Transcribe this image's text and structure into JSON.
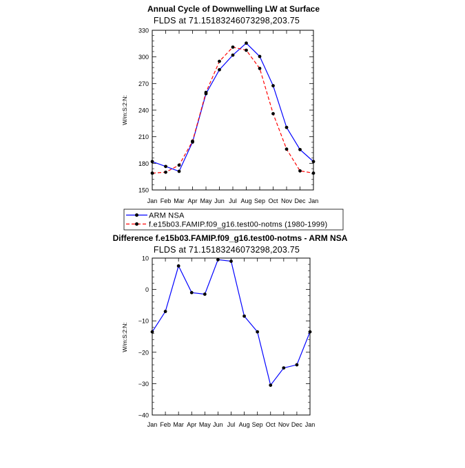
{
  "chart_data": [
    {
      "type": "line",
      "title": "Annual Cycle of Downwelling LW at Surface",
      "subtitle": "FLDS at 71.15183246073298,203.75",
      "ylabel": "W/m:S:2:N:",
      "ylim": [
        150,
        330
      ],
      "yticks": [
        150,
        180,
        210,
        240,
        270,
        300,
        330
      ],
      "categories": [
        "Jan",
        "Feb",
        "Mar",
        "Apr",
        "May",
        "Jun",
        "Jul",
        "Aug",
        "Sep",
        "Oct",
        "Nov",
        "Dec",
        "Jan"
      ],
      "series": [
        {
          "name": "ARM NSA",
          "color": "#0000ff",
          "dash": "solid",
          "values": [
            182,
            176.5,
            171,
            204,
            258.5,
            285.5,
            302,
            315.5,
            300.5,
            267.5,
            220.5,
            195.5,
            182
          ]
        },
        {
          "name": "f.e15b03.FAMIP.f09_g16.test00-notms (1980-1999)",
          "color": "#ff0000",
          "dash": "dashed",
          "values": [
            169,
            170,
            178,
            205,
            260,
            295,
            311,
            307.5,
            287,
            236,
            196,
            171.5,
            169
          ]
        }
      ],
      "legend": "below"
    },
    {
      "type": "line",
      "title": "Difference f.e15b03.FAMIP.f09_g16.test00-notms - ARM NSA",
      "subtitle": "FLDS at 71.15183246073298,203.75",
      "ylabel": "W/m:S:2:N:",
      "ylim": [
        -40,
        10
      ],
      "yticks": [
        -40,
        -30,
        -20,
        -10,
        0,
        10
      ],
      "categories": [
        "Jan",
        "Feb",
        "Mar",
        "Apr",
        "May",
        "Jun",
        "Jul",
        "Aug",
        "Sep",
        "Oct",
        "Nov",
        "Dec",
        "Jan"
      ],
      "series": [
        {
          "color": "#0000ff",
          "dash": "solid",
          "values": [
            -13.5,
            -7,
            7.5,
            -1,
            -1.5,
            9.5,
            9,
            -8.5,
            -13.5,
            -30.5,
            -25,
            -24,
            -13.5
          ]
        }
      ]
    }
  ]
}
